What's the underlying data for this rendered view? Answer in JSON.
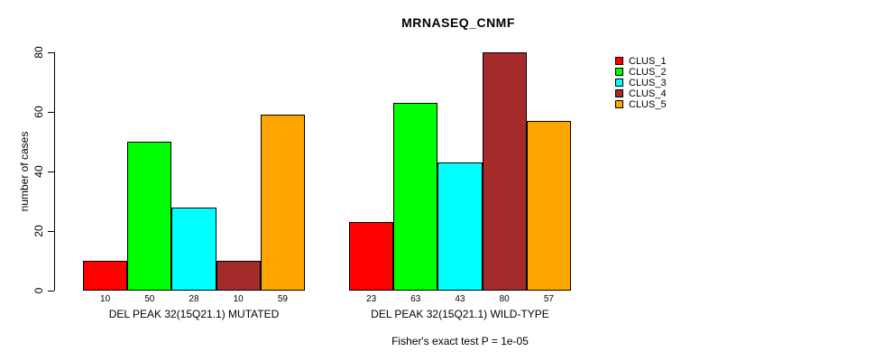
{
  "chart_data": {
    "type": "bar",
    "title": "MRNASEQ_CNMF",
    "ylabel": "number of cases",
    "ylim": [
      0,
      80
    ],
    "yticks": [
      0,
      20,
      40,
      60,
      80
    ],
    "grid": false,
    "legend_position": "right-outside",
    "series": [
      {
        "name": "CLUS_1",
        "color": "#FF0000"
      },
      {
        "name": "CLUS_2",
        "color": "#00FF00"
      },
      {
        "name": "CLUS_3",
        "color": "#00FFFF"
      },
      {
        "name": "CLUS_4",
        "color": "#A52A2A"
      },
      {
        "name": "CLUS_5",
        "color": "#FFA500"
      }
    ],
    "groups": [
      {
        "label": "DEL PEAK 32(15Q21.1) MUTATED",
        "values": [
          10,
          50,
          28,
          10,
          59
        ]
      },
      {
        "label": "DEL PEAK 32(15Q21.1) WILD-TYPE",
        "values": [
          23,
          63,
          43,
          80,
          57
        ]
      }
    ],
    "caption": "Fisher's exact test P = 1e-05"
  }
}
